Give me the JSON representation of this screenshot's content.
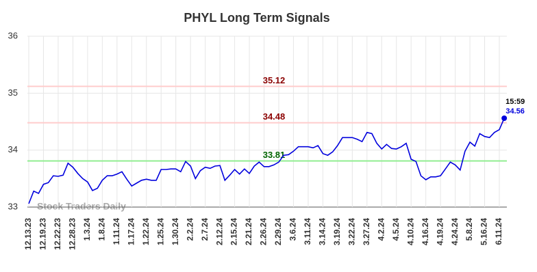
{
  "chart_data": {
    "type": "line",
    "title": "PHYL Long Term Signals",
    "watermark": "Stock Traders Daily",
    "categories": [
      "12.13.23",
      null,
      null,
      "12.19.23",
      null,
      null,
      "12.22.23",
      null,
      null,
      "12.28.23",
      null,
      null,
      "1.3.24",
      null,
      null,
      "1.8.24",
      null,
      null,
      "1.11.24",
      null,
      null,
      "1.17.24",
      null,
      null,
      "1.22.24",
      null,
      null,
      "1.25.24",
      null,
      null,
      "1.30.24",
      null,
      null,
      "2.2.24",
      null,
      null,
      "2.7.24",
      null,
      null,
      "2.12.24",
      null,
      null,
      "2.15.24",
      null,
      null,
      "2.21.24",
      null,
      null,
      "2.26.24",
      null,
      null,
      "2.29.24",
      null,
      null,
      "3.6.24",
      null,
      null,
      "3.11.24",
      null,
      null,
      "3.14.24",
      null,
      null,
      "3.19.24",
      null,
      null,
      "3.22.24",
      null,
      null,
      "3.27.24",
      null,
      null,
      "4.2.24",
      null,
      null,
      "4.5.24",
      null,
      null,
      "4.10.24",
      null,
      null,
      "4.16.24",
      null,
      null,
      "4.19.24",
      null,
      null,
      "4.24.24",
      null,
      null,
      "5.8.24",
      null,
      null,
      "5.16.24",
      null,
      null,
      "6.11.24",
      null
    ],
    "series": [
      {
        "name": "PHYL",
        "color": "#0000dd",
        "values": [
          33.06,
          33.28,
          33.24,
          33.4,
          33.43,
          33.55,
          33.54,
          33.56,
          33.77,
          33.7,
          33.59,
          33.5,
          33.44,
          33.29,
          33.33,
          33.47,
          33.55,
          33.55,
          33.58,
          33.62,
          33.49,
          33.37,
          33.42,
          33.47,
          33.49,
          33.47,
          33.47,
          33.66,
          33.66,
          33.67,
          33.67,
          33.62,
          33.8,
          33.72,
          33.5,
          33.64,
          33.7,
          33.68,
          33.72,
          33.73,
          33.47,
          33.56,
          33.66,
          33.58,
          33.67,
          33.59,
          33.72,
          33.79,
          33.71,
          33.71,
          33.74,
          33.79,
          33.91,
          33.92,
          33.98,
          34.06,
          34.06,
          34.06,
          34.04,
          34.08,
          33.94,
          33.91,
          33.97,
          34.08,
          34.22,
          34.22,
          34.22,
          34.19,
          34.15,
          34.31,
          34.29,
          34.12,
          34.02,
          34.1,
          34.03,
          34.02,
          34.06,
          34.12,
          33.84,
          33.8,
          33.55,
          33.48,
          33.53,
          33.53,
          33.55,
          33.67,
          33.79,
          33.74,
          33.65,
          33.98,
          34.14,
          34.07,
          34.29,
          34.24,
          34.22,
          34.31,
          34.36,
          34.56
        ]
      }
    ],
    "hlines": [
      {
        "value": 35.12,
        "color": "#ffcccc",
        "label_color": "#8b0000"
      },
      {
        "value": 34.48,
        "color": "#ffcccc",
        "label_color": "#8b0000"
      },
      {
        "value": 33.81,
        "color": "#90ee90",
        "label_color": "#006400"
      }
    ],
    "last_time": "15:59",
    "ylim": [
      33,
      36
    ],
    "yticks": [
      33,
      34,
      35,
      36
    ],
    "grid": true
  }
}
